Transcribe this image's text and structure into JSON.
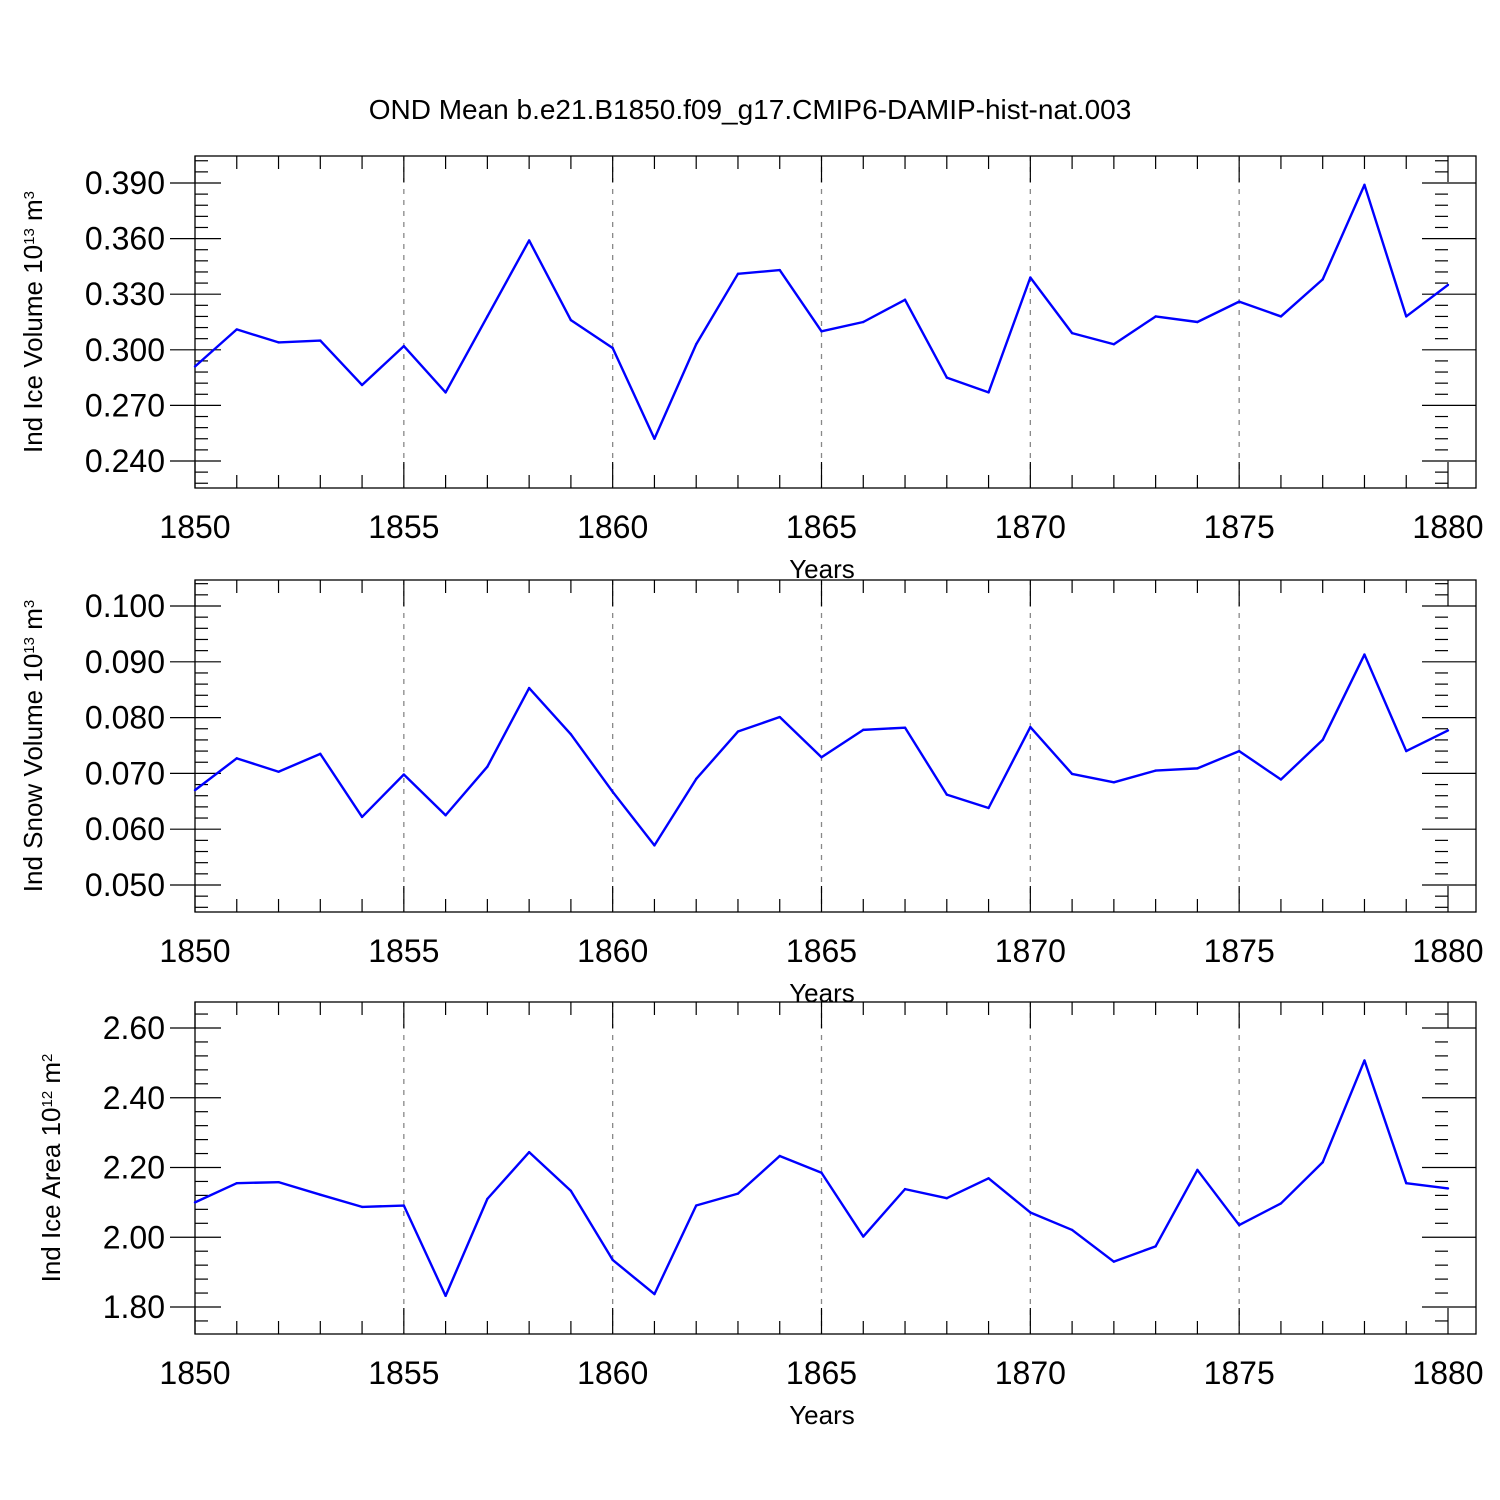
{
  "title": "OND Mean b.e21.B1850.f09_g17.CMIP6-DAMIP-hist-nat.003",
  "colors": {
    "series": "#0000ff",
    "axes": "#000000",
    "grid": "#888888"
  },
  "chart_data": [
    {
      "type": "line",
      "xlabel": "Years",
      "ylabel": {
        "text": "Ind Ice Volume 10",
        "exp": "13",
        "unit": " m",
        "unit_exp": "3"
      },
      "xlim": [
        1850,
        1880
      ],
      "ylim": [
        0.24,
        0.39
      ],
      "yticks": [
        "0.240",
        "0.270",
        "0.300",
        "0.330",
        "0.360",
        "0.390"
      ],
      "xticks": [
        "1850",
        "1855",
        "1860",
        "1865",
        "1870",
        "1875",
        "1880"
      ],
      "grid": "vertical dashed at major x ticks",
      "x": [
        1850,
        1851,
        1852,
        1853,
        1854,
        1855,
        1856,
        1857,
        1858,
        1859,
        1860,
        1861,
        1862,
        1863,
        1864,
        1865,
        1866,
        1867,
        1868,
        1869,
        1870,
        1871,
        1872,
        1873,
        1874,
        1875,
        1876,
        1877,
        1878,
        1879,
        1880
      ],
      "series": [
        {
          "values": [
            0.291,
            0.311,
            0.304,
            0.305,
            0.281,
            0.302,
            0.277,
            0.318,
            0.359,
            0.316,
            0.301,
            0.252,
            0.303,
            0.341,
            0.343,
            0.31,
            0.315,
            0.327,
            0.285,
            0.277,
            0.339,
            0.309,
            0.303,
            0.318,
            0.315,
            0.326,
            0.318,
            0.338,
            0.389,
            0.318,
            0.335
          ]
        }
      ]
    },
    {
      "type": "line",
      "xlabel": "Years",
      "ylabel": {
        "text": "Ind Snow Volume 10",
        "exp": "13",
        "unit": " m",
        "unit_exp": "3"
      },
      "xlim": [
        1850,
        1880
      ],
      "ylim": [
        0.05,
        0.1
      ],
      "yticks": [
        "0.050",
        "0.060",
        "0.070",
        "0.080",
        "0.090",
        "0.100"
      ],
      "xticks": [
        "1850",
        "1855",
        "1860",
        "1865",
        "1870",
        "1875",
        "1880"
      ],
      "grid": "vertical dashed at major x ticks",
      "x": [
        1850,
        1851,
        1852,
        1853,
        1854,
        1855,
        1856,
        1857,
        1858,
        1859,
        1860,
        1861,
        1862,
        1863,
        1864,
        1865,
        1866,
        1867,
        1868,
        1869,
        1870,
        1871,
        1872,
        1873,
        1874,
        1875,
        1876,
        1877,
        1878,
        1879,
        1880
      ],
      "series": [
        {
          "values": [
            0.067,
            0.0727,
            0.0703,
            0.0735,
            0.0622,
            0.0698,
            0.0625,
            0.0712,
            0.0853,
            0.077,
            0.0667,
            0.0571,
            0.069,
            0.0775,
            0.0801,
            0.0729,
            0.0778,
            0.0782,
            0.0662,
            0.0638,
            0.0783,
            0.0699,
            0.0684,
            0.0705,
            0.0709,
            0.074,
            0.0689,
            0.076,
            0.0913,
            0.074,
            0.0777
          ]
        }
      ]
    },
    {
      "type": "line",
      "xlabel": "Years",
      "ylabel": {
        "text": "Ind Ice Area 10",
        "exp": "12",
        "unit": " m",
        "unit_exp": "2"
      },
      "xlim": [
        1850,
        1880
      ],
      "ylim": [
        1.8,
        2.6
      ],
      "yticks": [
        "1.80",
        "2.00",
        "2.20",
        "2.40",
        "2.60"
      ],
      "xticks": [
        "1850",
        "1855",
        "1860",
        "1865",
        "1870",
        "1875",
        "1880"
      ],
      "grid": "vertical dashed at major x ticks",
      "x": [
        1850,
        1851,
        1852,
        1853,
        1854,
        1855,
        1856,
        1857,
        1858,
        1859,
        1860,
        1861,
        1862,
        1863,
        1864,
        1865,
        1866,
        1867,
        1868,
        1869,
        1870,
        1871,
        1872,
        1873,
        1874,
        1875,
        1876,
        1877,
        1878,
        1879,
        1880
      ],
      "series": [
        {
          "values": [
            2.1,
            2.155,
            2.158,
            2.122,
            2.087,
            2.091,
            1.832,
            2.11,
            2.244,
            2.133,
            1.935,
            1.837,
            2.091,
            2.125,
            2.233,
            2.185,
            2.002,
            2.138,
            2.112,
            2.169,
            2.071,
            2.021,
            1.93,
            1.974,
            2.193,
            2.035,
            2.097,
            2.215,
            2.507,
            2.155,
            2.14
          ]
        }
      ]
    }
  ]
}
